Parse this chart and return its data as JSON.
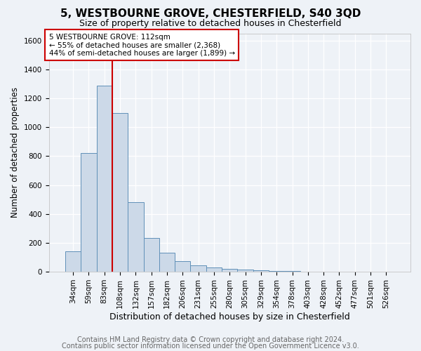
{
  "title": "5, WESTBOURNE GROVE, CHESTERFIELD, S40 3QD",
  "subtitle": "Size of property relative to detached houses in Chesterfield",
  "xlabel": "Distribution of detached houses by size in Chesterfield",
  "ylabel": "Number of detached properties",
  "categories": [
    "34sqm",
    "59sqm",
    "83sqm",
    "108sqm",
    "132sqm",
    "157sqm",
    "182sqm",
    "206sqm",
    "231sqm",
    "255sqm",
    "280sqm",
    "305sqm",
    "329sqm",
    "354sqm",
    "378sqm",
    "403sqm",
    "428sqm",
    "452sqm",
    "477sqm",
    "501sqm",
    "526sqm"
  ],
  "values": [
    140,
    820,
    1290,
    1100,
    480,
    235,
    130,
    75,
    45,
    30,
    20,
    15,
    10,
    7,
    5,
    2,
    2,
    1,
    1,
    1,
    1
  ],
  "bar_color": "#ccd9e8",
  "bar_edge_color": "#6090b8",
  "vline_color": "#cc0000",
  "vline_x": 3.0,
  "annotation_text": "5 WESTBOURNE GROVE: 112sqm\n← 55% of detached houses are smaller (2,368)\n44% of semi-detached houses are larger (1,899) →",
  "ylim": [
    0,
    1650
  ],
  "yticks": [
    0,
    200,
    400,
    600,
    800,
    1000,
    1200,
    1400,
    1600
  ],
  "footer_line1": "Contains HM Land Registry data © Crown copyright and database right 2024.",
  "footer_line2": "Contains public sector information licensed under the Open Government Licence v3.0.",
  "title_fontsize": 11,
  "subtitle_fontsize": 9,
  "xlabel_fontsize": 9,
  "ylabel_fontsize": 8.5,
  "tick_fontsize": 7.5,
  "annotation_fontsize": 7.5,
  "footer_fontsize": 7,
  "background_color": "#eef2f7"
}
